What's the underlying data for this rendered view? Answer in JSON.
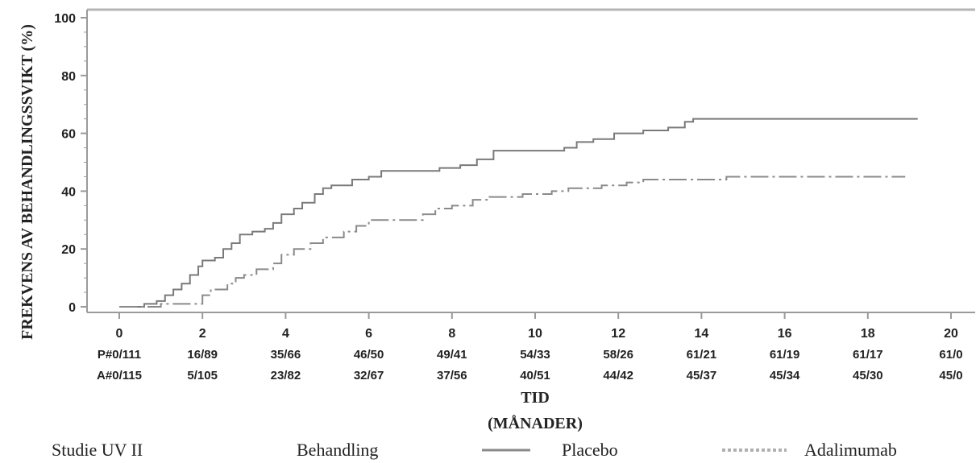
{
  "chart_data": {
    "type": "line",
    "step": true,
    "ylabel": "FREKVENS AV BEHANDLINGSSVIKT (%)",
    "xlabel_line1": "TID",
    "xlabel_line2": "(MÅNADER)",
    "xlim": [
      0,
      20
    ],
    "ylim": [
      0,
      100
    ],
    "x_ticks": [
      0,
      2,
      4,
      6,
      8,
      10,
      12,
      14,
      16,
      18,
      20
    ],
    "y_ticks": [
      0,
      20,
      40,
      60,
      80,
      100
    ],
    "risk_table": {
      "placebo": [
        "P#0/111",
        "16/89",
        "35/66",
        "46/50",
        "49/41",
        "54/33",
        "58/26",
        "61/21",
        "61/19",
        "61/17",
        "61/0"
      ],
      "adalimumab": [
        "A#0/115",
        "5/105",
        "23/82",
        "32/67",
        "37/56",
        "40/51",
        "44/42",
        "45/37",
        "45/34",
        "45/30",
        "45/0"
      ]
    },
    "series": [
      {
        "name": "Placebo",
        "style": "solid",
        "color": "#7a7a7a",
        "points": [
          [
            0,
            0
          ],
          [
            0.6,
            1
          ],
          [
            0.9,
            2
          ],
          [
            1.1,
            4
          ],
          [
            1.3,
            6
          ],
          [
            1.5,
            8
          ],
          [
            1.7,
            11
          ],
          [
            1.9,
            14
          ],
          [
            2.0,
            16
          ],
          [
            2.3,
            17
          ],
          [
            2.5,
            20
          ],
          [
            2.7,
            22
          ],
          [
            2.9,
            25
          ],
          [
            3.2,
            26
          ],
          [
            3.5,
            27
          ],
          [
            3.7,
            29
          ],
          [
            3.9,
            32
          ],
          [
            4.2,
            34
          ],
          [
            4.4,
            36
          ],
          [
            4.7,
            39
          ],
          [
            4.9,
            41
          ],
          [
            5.1,
            42
          ],
          [
            5.6,
            44
          ],
          [
            6.0,
            45
          ],
          [
            6.3,
            47
          ],
          [
            7.7,
            48
          ],
          [
            8.2,
            49
          ],
          [
            8.6,
            51
          ],
          [
            9.0,
            54
          ],
          [
            10.7,
            55
          ],
          [
            11.0,
            57
          ],
          [
            11.4,
            58
          ],
          [
            11.9,
            60
          ],
          [
            12.6,
            61
          ],
          [
            13.2,
            62
          ],
          [
            13.6,
            64
          ],
          [
            13.8,
            65
          ],
          [
            19.2,
            65
          ]
        ]
      },
      {
        "name": "Adalimumab",
        "style": "dashed",
        "color": "#8a8a8a",
        "points": [
          [
            0,
            0
          ],
          [
            1.0,
            1
          ],
          [
            2.0,
            4
          ],
          [
            2.2,
            6
          ],
          [
            2.6,
            8
          ],
          [
            2.8,
            10
          ],
          [
            3.0,
            11
          ],
          [
            3.3,
            13
          ],
          [
            3.7,
            15
          ],
          [
            3.9,
            18
          ],
          [
            4.2,
            20
          ],
          [
            4.6,
            22
          ],
          [
            4.9,
            24
          ],
          [
            5.4,
            26
          ],
          [
            5.7,
            28
          ],
          [
            6.0,
            30
          ],
          [
            7.3,
            32
          ],
          [
            7.6,
            34
          ],
          [
            8.0,
            35
          ],
          [
            8.5,
            37
          ],
          [
            8.9,
            38
          ],
          [
            9.7,
            39
          ],
          [
            10.4,
            40
          ],
          [
            10.8,
            41
          ],
          [
            11.6,
            42
          ],
          [
            12.2,
            43
          ],
          [
            12.6,
            44
          ],
          [
            14.6,
            45
          ],
          [
            18.9,
            45
          ]
        ]
      }
    ]
  },
  "legend": {
    "study_label": "Studie UV II",
    "treatment_label": "Behandling",
    "placebo_label": "Placebo",
    "adalimumab_label": "Adalimumab"
  }
}
